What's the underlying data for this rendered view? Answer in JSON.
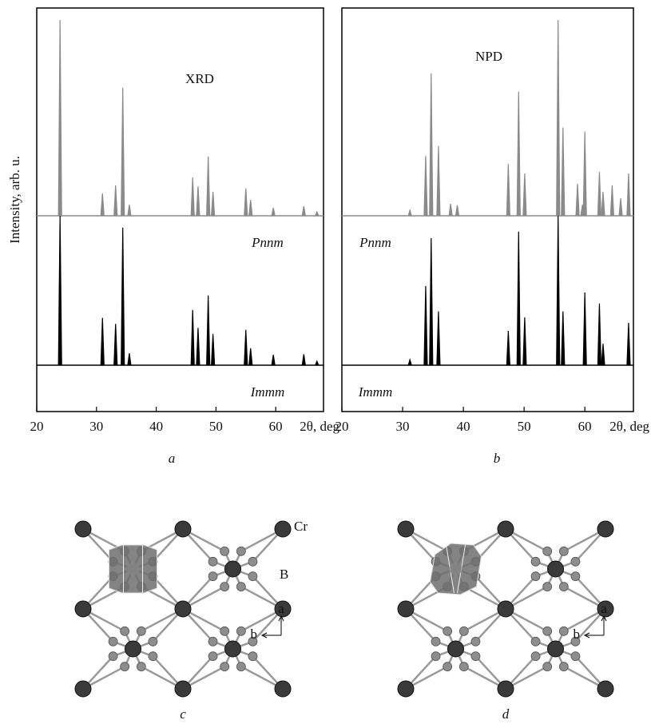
{
  "chart_data": [
    {
      "type": "stick",
      "caption": "a",
      "annotation": "XRD",
      "ylabel": "Intensity, arb. u.",
      "xlabel": "2θ, deg",
      "xlim": [
        20,
        68
      ],
      "xticks": [
        20,
        30,
        40,
        50,
        60
      ],
      "ylim": [
        0,
        8.1
      ],
      "series": [
        {
          "name": "Pnnm",
          "color": "#8a8a8a",
          "baseline": 3.93,
          "x": [
            23.9,
            31.0,
            33.2,
            34.4,
            35.5,
            46.1,
            47.0,
            48.7,
            49.5,
            55.0,
            55.8,
            59.6,
            64.7,
            66.9
          ],
          "values": [
            3.93,
            0.45,
            0.61,
            2.57,
            0.22,
            0.77,
            0.59,
            1.19,
            0.48,
            0.55,
            0.32,
            0.16,
            0.19,
            0.08
          ]
        },
        {
          "name": "Immm",
          "color": "#000000",
          "baseline": 0.93,
          "x": [
            23.9,
            31.0,
            33.2,
            34.4,
            35.5,
            46.1,
            47.0,
            48.7,
            49.5,
            55.0,
            55.8,
            59.6,
            64.7,
            66.9
          ],
          "values": [
            3.0,
            0.95,
            0.83,
            2.76,
            0.24,
            1.11,
            0.75,
            1.4,
            0.63,
            0.71,
            0.34,
            0.21,
            0.22,
            0.08
          ]
        }
      ]
    },
    {
      "type": "stick",
      "caption": "b",
      "annotation": "NPD",
      "xlabel": "2θ, deg",
      "xlim": [
        20,
        68
      ],
      "xticks": [
        20,
        30,
        40,
        50,
        60
      ],
      "ylim": [
        0,
        8.1
      ],
      "series": [
        {
          "name": "Pnnm",
          "color": "#8a8a8a",
          "baseline": 3.93,
          "x": [
            31.2,
            33.8,
            34.7,
            35.9,
            37.9,
            39.0,
            47.4,
            49.1,
            50.1,
            55.6,
            56.4,
            58.8,
            59.6,
            60.0,
            62.4,
            63.0,
            64.5,
            65.9,
            67.2
          ],
          "values": [
            0.11,
            1.2,
            2.86,
            1.4,
            0.24,
            0.21,
            1.04,
            2.49,
            0.85,
            3.93,
            1.77,
            0.64,
            0.22,
            1.69,
            0.88,
            0.48,
            0.61,
            0.35,
            0.85
          ]
        },
        {
          "name": "Immm",
          "color": "#000000",
          "baseline": 0.93,
          "x": [
            31.2,
            33.8,
            34.7,
            35.9,
            47.4,
            49.1,
            50.1,
            55.6,
            56.4,
            60.0,
            62.4,
            63.0,
            67.2
          ],
          "values": [
            0.11,
            1.59,
            2.55,
            1.08,
            0.69,
            2.68,
            0.96,
            3.0,
            1.08,
            1.46,
            1.24,
            0.43,
            0.85
          ]
        }
      ]
    }
  ],
  "structures": [
    {
      "caption": "c",
      "cr_label": "Cr",
      "b_label": "B",
      "axis_a": "a",
      "axis_b": "b"
    },
    {
      "caption": "d",
      "axis_a": "a",
      "axis_b": "b"
    }
  ]
}
